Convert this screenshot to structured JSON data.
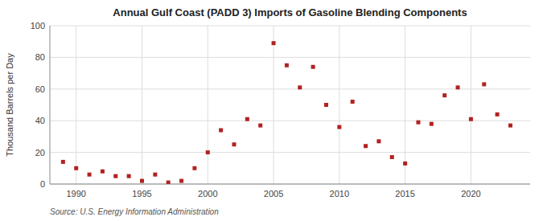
{
  "chart_data": {
    "type": "scatter",
    "title": "Annual Gulf Coast (PADD 3) Imports of Gasoline Blending Components",
    "y_label": "Thousand Barrels per Day",
    "source": "Source: U.S. Energy Information Administration",
    "x": [
      1989,
      1990,
      1991,
      1992,
      1993,
      1994,
      1995,
      1996,
      1997,
      1998,
      1999,
      2000,
      2001,
      2002,
      2003,
      2004,
      2005,
      2006,
      2007,
      2008,
      2009,
      2010,
      2011,
      2012,
      2013,
      2014,
      2015,
      2016,
      2017,
      2018,
      2019,
      2020,
      2021,
      2022,
      2023
    ],
    "values": [
      14,
      10,
      6,
      8,
      5,
      5,
      2,
      6,
      1,
      2,
      10,
      20,
      34,
      25,
      41,
      37,
      89,
      75,
      61,
      74,
      50,
      36,
      52,
      24,
      27,
      17,
      13,
      39,
      38,
      56,
      61,
      41,
      63,
      44,
      37
    ],
    "color": "#b22222",
    "marker": "square",
    "xlim": [
      1988.0,
      2024.5
    ],
    "xticks": [
      1990,
      1995,
      2000,
      2005,
      2010,
      2015,
      2020
    ],
    "ylim": [
      0,
      100
    ],
    "yticks": [
      0,
      20,
      40,
      60,
      80,
      100
    ],
    "grid": true
  }
}
